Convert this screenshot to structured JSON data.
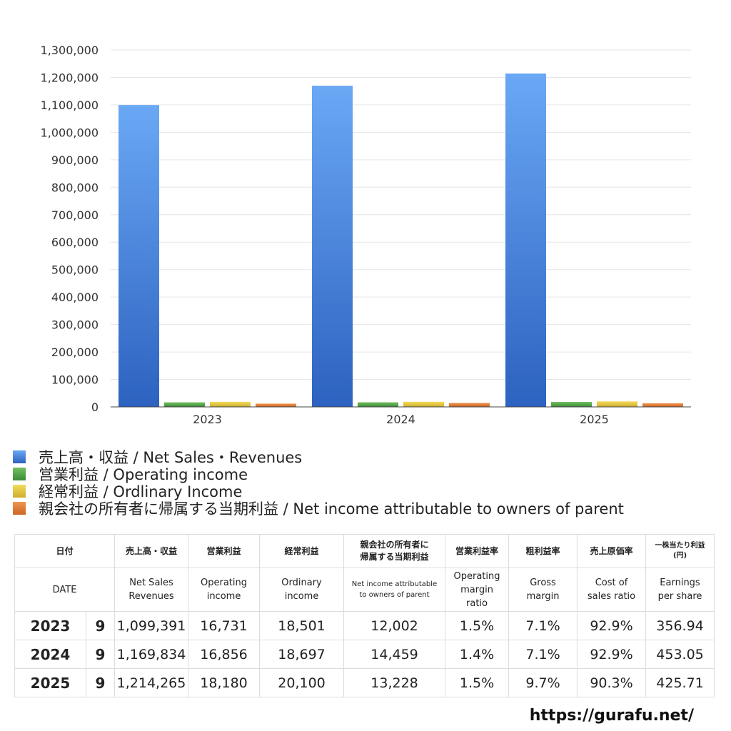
{
  "chart_data": {
    "type": "bar",
    "categories": [
      "2023",
      "2024",
      "2025"
    ],
    "ylim": [
      0,
      1300000
    ],
    "y_ticks": [
      0,
      100000,
      200000,
      300000,
      400000,
      500000,
      600000,
      700000,
      800000,
      900000,
      1000000,
      1100000,
      1200000,
      1300000
    ],
    "y_tick_labels": [
      "0",
      "100,000",
      "200,000",
      "300,000",
      "400,000",
      "500,000",
      "600,000",
      "700,000",
      "800,000",
      "900,000",
      "1,000,000",
      "1,100,000",
      "1,200,000",
      "1,300,000"
    ],
    "grid": true,
    "legend_position": "bottom-left",
    "series": [
      {
        "name": "売上高・収益 / Net Sales・Revenues",
        "color": "#3f7fdc",
        "values": [
          1099391,
          1169834,
          1214265
        ]
      },
      {
        "name": "営業利益 / Operating income",
        "color": "#4fa046",
        "values": [
          16731,
          16856,
          18180
        ]
      },
      {
        "name": "経常利益 / Ordlinary Income",
        "color": "#e0c234",
        "values": [
          18501,
          18697,
          20100
        ]
      },
      {
        "name": "親会社の所有者に帰属する当期利益 / Net income attributable to owners of parent",
        "color": "#e0782f",
        "values": [
          12002,
          14459,
          13228
        ]
      }
    ]
  },
  "table": {
    "header_jp": [
      "日付",
      "売上高・収益",
      "営業利益",
      "経常利益",
      "親会社の所有者に",
      "帰属する当期利益",
      "営業利益率",
      "粗利益率",
      "売上原価率",
      "一株当たり利益",
      "(円)"
    ],
    "header_en": {
      "date": "DATE",
      "sales": [
        "Net Sales",
        "Revenues"
      ],
      "op": [
        "Operating",
        "income"
      ],
      "ord": [
        "Ordinary",
        "income"
      ],
      "net": [
        "Net income attributable",
        "to owners of parent"
      ],
      "opm": [
        "Operating",
        "margin",
        "ratio"
      ],
      "gm": [
        "Gross",
        "margin"
      ],
      "cos": [
        "Cost of",
        "sales ratio"
      ],
      "eps": [
        "Earnings",
        "per share"
      ]
    },
    "rows": [
      {
        "year": "2023",
        "month": "9",
        "sales": "1,099,391",
        "op": "16,731",
        "ord": "18,501",
        "net": "12,002",
        "opm": "1.5%",
        "gm": "7.1%",
        "cos": "92.9%",
        "eps": "356.94"
      },
      {
        "year": "2024",
        "month": "9",
        "sales": "1,169,834",
        "op": "16,856",
        "ord": "18,697",
        "net": "14,459",
        "opm": "1.4%",
        "gm": "7.1%",
        "cos": "92.9%",
        "eps": "453.05"
      },
      {
        "year": "2025",
        "month": "9",
        "sales": "1,214,265",
        "op": "18,180",
        "ord": "20,100",
        "net": "13,228",
        "opm": "1.5%",
        "gm": "9.7%",
        "cos": "90.3%",
        "eps": "425.71"
      }
    ]
  },
  "footer": {
    "url": "https://gurafu.net/"
  }
}
